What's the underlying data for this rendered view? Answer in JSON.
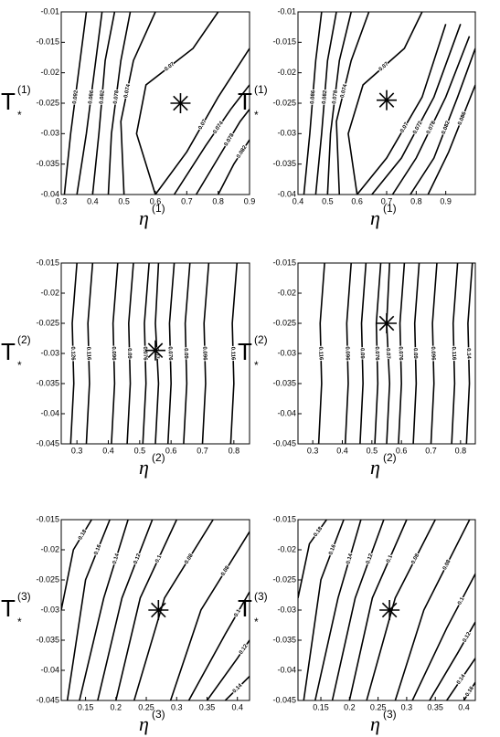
{
  "chart_data": [
    {
      "type": "contour",
      "xlim": [
        0.3,
        0.9
      ],
      "ylim": [
        -0.04,
        -0.01
      ],
      "xticks": [
        0.3,
        0.4,
        0.5,
        0.6,
        0.7,
        0.8,
        0.9
      ],
      "yticks": [
        -0.01,
        -0.015,
        -0.02,
        -0.025,
        -0.03,
        -0.035,
        -0.04
      ],
      "xlabel": {
        "main": "η",
        "sup": "(1)"
      },
      "ylabel": {
        "main": "T",
        "sub": "*",
        "sup": "(1)"
      },
      "marker": {
        "x": 0.68,
        "y": -0.025
      },
      "contours": [
        {
          "level": 0.092,
          "x": [
            0.31,
            0.33,
            0.36,
            0.38
          ],
          "y": [
            -0.04,
            -0.03,
            -0.018,
            -0.01
          ]
        },
        {
          "level": 0.086,
          "x": [
            0.35,
            0.38,
            0.41,
            0.43
          ],
          "y": [
            -0.04,
            -0.03,
            -0.018,
            -0.01
          ]
        },
        {
          "level": 0.082,
          "x": [
            0.4,
            0.42,
            0.44,
            0.47
          ],
          "y": [
            -0.04,
            -0.03,
            -0.018,
            -0.01
          ]
        },
        {
          "level": 0.078,
          "x": [
            0.45,
            0.46,
            0.49,
            0.52
          ],
          "y": [
            -0.04,
            -0.03,
            -0.018,
            -0.01
          ]
        },
        {
          "level": 0.074,
          "x": [
            0.5,
            0.49,
            0.53,
            0.6
          ],
          "y": [
            -0.04,
            -0.028,
            -0.018,
            -0.01
          ]
        },
        {
          "level": 0.07,
          "x": [
            0.6,
            0.54,
            0.57,
            0.72,
            0.8
          ],
          "y": [
            -0.04,
            -0.03,
            -0.022,
            -0.016,
            -0.01
          ]
        },
        {
          "level": 0.07,
          "x": [
            0.6,
            0.7,
            0.8,
            0.9
          ],
          "y": [
            -0.04,
            -0.033,
            -0.024,
            -0.016
          ]
        },
        {
          "level": 0.074,
          "x": [
            0.66,
            0.76,
            0.84,
            0.9
          ],
          "y": [
            -0.04,
            -0.032,
            -0.026,
            -0.022
          ]
        },
        {
          "level": 0.078,
          "x": [
            0.73,
            0.8,
            0.87,
            0.9
          ],
          "y": [
            -0.04,
            -0.034,
            -0.028,
            -0.026
          ]
        },
        {
          "level": 0.082,
          "x": [
            0.8,
            0.85,
            0.9
          ],
          "y": [
            -0.04,
            -0.035,
            -0.031
          ]
        }
      ]
    },
    {
      "type": "contour",
      "xlim": [
        0.4,
        1.0
      ],
      "ylim": [
        -0.04,
        -0.01
      ],
      "xticks": [
        0.4,
        0.5,
        0.6,
        0.7,
        0.8,
        0.9
      ],
      "yticks": [
        -0.01,
        -0.015,
        -0.02,
        -0.025,
        -0.03,
        -0.035,
        -0.04
      ],
      "xlabel": {
        "main": "η",
        "sup": "(1)"
      },
      "ylabel": {
        "main": "T",
        "sub": "*",
        "sup": "(1)"
      },
      "marker": {
        "x": 0.7,
        "y": -0.0245
      },
      "contours": [
        {
          "level": 0.086,
          "x": [
            0.42,
            0.44,
            0.46,
            0.48
          ],
          "y": [
            -0.04,
            -0.03,
            -0.018,
            -0.01
          ]
        },
        {
          "level": 0.082,
          "x": [
            0.46,
            0.48,
            0.5,
            0.53
          ],
          "y": [
            -0.04,
            -0.03,
            -0.018,
            -0.01
          ]
        },
        {
          "level": 0.078,
          "x": [
            0.5,
            0.51,
            0.54,
            0.58
          ],
          "y": [
            -0.04,
            -0.03,
            -0.018,
            -0.01
          ]
        },
        {
          "level": 0.074,
          "x": [
            0.54,
            0.53,
            0.58,
            0.64
          ],
          "y": [
            -0.04,
            -0.028,
            -0.018,
            -0.01
          ]
        },
        {
          "level": 0.07,
          "x": [
            0.6,
            0.57,
            0.62,
            0.76,
            0.82
          ],
          "y": [
            -0.04,
            -0.03,
            -0.022,
            -0.016,
            -0.01
          ]
        },
        {
          "level": 0.07,
          "x": [
            0.6,
            0.7,
            0.82,
            0.9
          ],
          "y": [
            -0.04,
            -0.034,
            -0.024,
            -0.012
          ]
        },
        {
          "level": 0.072,
          "x": [
            0.65,
            0.75,
            0.86,
            0.95
          ],
          "y": [
            -0.04,
            -0.034,
            -0.024,
            -0.012
          ]
        },
        {
          "level": 0.078,
          "x": [
            0.72,
            0.8,
            0.9,
            0.98
          ],
          "y": [
            -0.04,
            -0.034,
            -0.024,
            -0.014
          ]
        },
        {
          "level": 0.082,
          "x": [
            0.78,
            0.86,
            0.94,
            1.0
          ],
          "y": [
            -0.04,
            -0.034,
            -0.024,
            -0.016
          ]
        },
        {
          "level": 0.086,
          "x": [
            0.84,
            0.91,
            1.0
          ],
          "y": [
            -0.04,
            -0.033,
            -0.022
          ]
        }
      ]
    },
    {
      "type": "contour",
      "xlim": [
        0.25,
        0.85
      ],
      "ylim": [
        -0.045,
        -0.015
      ],
      "xticks": [
        0.3,
        0.4,
        0.5,
        0.6,
        0.7,
        0.8
      ],
      "yticks": [
        -0.015,
        -0.02,
        -0.025,
        -0.03,
        -0.035,
        -0.04,
        -0.045
      ],
      "xlabel": {
        "main": "η",
        "sup": "(2)"
      },
      "ylabel": {
        "main": "T",
        "sub": "*",
        "sup": "(2)"
      },
      "marker": {
        "x": 0.55,
        "y": -0.0295
      },
      "contours": [
        {
          "level": 0.126,
          "x": [
            0.28,
            0.29,
            0.285,
            0.3
          ],
          "y": [
            -0.045,
            -0.035,
            -0.025,
            -0.015
          ]
        },
        {
          "level": 0.116,
          "x": [
            0.33,
            0.34,
            0.335,
            0.35
          ],
          "y": [
            -0.045,
            -0.035,
            -0.025,
            -0.015
          ]
        },
        {
          "level": 0.096,
          "x": [
            0.41,
            0.42,
            0.415,
            0.43
          ],
          "y": [
            -0.045,
            -0.035,
            -0.025,
            -0.015
          ]
        },
        {
          "level": 0.09,
          "x": [
            0.46,
            0.47,
            0.465,
            0.48
          ],
          "y": [
            -0.045,
            -0.035,
            -0.025,
            -0.015
          ]
        },
        {
          "level": 0.076,
          "x": [
            0.51,
            0.52,
            0.515,
            0.53
          ],
          "y": [
            -0.045,
            -0.035,
            -0.025,
            -0.015
          ]
        },
        {
          "level": 0.07,
          "x": [
            0.55,
            0.56,
            0.55,
            0.56
          ],
          "y": [
            -0.045,
            -0.035,
            -0.025,
            -0.015
          ]
        },
        {
          "level": 0.076,
          "x": [
            0.59,
            0.6,
            0.595,
            0.61
          ],
          "y": [
            -0.045,
            -0.035,
            -0.025,
            -0.015
          ]
        },
        {
          "level": 0.09,
          "x": [
            0.64,
            0.65,
            0.645,
            0.66
          ],
          "y": [
            -0.045,
            -0.035,
            -0.025,
            -0.015
          ]
        },
        {
          "level": 0.096,
          "x": [
            0.7,
            0.71,
            0.705,
            0.72
          ],
          "y": [
            -0.045,
            -0.035,
            -0.025,
            -0.015
          ]
        },
        {
          "level": 0.116,
          "x": [
            0.79,
            0.8,
            0.795,
            0.81
          ],
          "y": [
            -0.045,
            -0.035,
            -0.025,
            -0.015
          ]
        }
      ]
    },
    {
      "type": "contour",
      "xlim": [
        0.25,
        0.85
      ],
      "ylim": [
        -0.045,
        -0.015
      ],
      "xticks": [
        0.3,
        0.4,
        0.5,
        0.6,
        0.7,
        0.8
      ],
      "yticks": [
        -0.015,
        -0.02,
        -0.025,
        -0.03,
        -0.035,
        -0.04,
        -0.045
      ],
      "xlabel": {
        "main": "η",
        "sup": "(2)"
      },
      "ylabel": {
        "main": "T",
        "sub": "*",
        "sup": "(2)"
      },
      "marker": {
        "x": 0.55,
        "y": -0.025
      },
      "contours": [
        {
          "level": 0.116,
          "x": [
            0.32,
            0.33,
            0.325,
            0.34
          ],
          "y": [
            -0.045,
            -0.035,
            -0.025,
            -0.015
          ]
        },
        {
          "level": 0.096,
          "x": [
            0.41,
            0.42,
            0.415,
            0.43
          ],
          "y": [
            -0.045,
            -0.035,
            -0.025,
            -0.015
          ]
        },
        {
          "level": 0.09,
          "x": [
            0.46,
            0.47,
            0.465,
            0.48
          ],
          "y": [
            -0.045,
            -0.035,
            -0.025,
            -0.015
          ]
        },
        {
          "level": 0.076,
          "x": [
            0.51,
            0.52,
            0.515,
            0.53
          ],
          "y": [
            -0.045,
            -0.035,
            -0.025,
            -0.015
          ]
        },
        {
          "level": 0.07,
          "x": [
            0.55,
            0.56,
            0.55,
            0.56
          ],
          "y": [
            -0.045,
            -0.035,
            -0.025,
            -0.015
          ]
        },
        {
          "level": 0.076,
          "x": [
            0.59,
            0.6,
            0.595,
            0.61
          ],
          "y": [
            -0.045,
            -0.035,
            -0.025,
            -0.015
          ]
        },
        {
          "level": 0.09,
          "x": [
            0.64,
            0.65,
            0.645,
            0.66
          ],
          "y": [
            -0.045,
            -0.035,
            -0.025,
            -0.015
          ]
        },
        {
          "level": 0.096,
          "x": [
            0.7,
            0.71,
            0.705,
            0.72
          ],
          "y": [
            -0.045,
            -0.035,
            -0.025,
            -0.015
          ]
        },
        {
          "level": 0.116,
          "x": [
            0.77,
            0.78,
            0.775,
            0.79
          ],
          "y": [
            -0.045,
            -0.035,
            -0.025,
            -0.015
          ]
        },
        {
          "level": 0.14,
          "x": [
            0.82,
            0.83,
            0.825,
            0.84
          ],
          "y": [
            -0.045,
            -0.035,
            -0.025,
            -0.015
          ]
        }
      ]
    },
    {
      "type": "contour",
      "xlim": [
        0.11,
        0.42
      ],
      "ylim": [
        -0.045,
        -0.015
      ],
      "xticks": [
        0.15,
        0.2,
        0.25,
        0.3,
        0.35,
        0.4
      ],
      "yticks": [
        -0.015,
        -0.02,
        -0.025,
        -0.03,
        -0.035,
        -0.04,
        -0.045
      ],
      "xlabel": {
        "main": "η",
        "sup": "(3)"
      },
      "ylabel": {
        "main": "T",
        "sub": "*",
        "sup": "(3)"
      },
      "marker": {
        "x": 0.27,
        "y": -0.03
      },
      "contours": [
        {
          "level": 0.18,
          "x": [
            0.11,
            0.13,
            0.16
          ],
          "y": [
            -0.03,
            -0.02,
            -0.015
          ]
        },
        {
          "level": 0.16,
          "x": [
            0.12,
            0.15,
            0.19
          ],
          "y": [
            -0.045,
            -0.025,
            -0.015
          ]
        },
        {
          "level": 0.14,
          "x": [
            0.14,
            0.18,
            0.22
          ],
          "y": [
            -0.045,
            -0.028,
            -0.015
          ]
        },
        {
          "level": 0.12,
          "x": [
            0.17,
            0.21,
            0.26
          ],
          "y": [
            -0.045,
            -0.028,
            -0.015
          ]
        },
        {
          "level": 0.1,
          "x": [
            0.2,
            0.24,
            0.3
          ],
          "y": [
            -0.045,
            -0.028,
            -0.015
          ]
        },
        {
          "level": 0.08,
          "x": [
            0.23,
            0.28,
            0.36
          ],
          "y": [
            -0.045,
            -0.028,
            -0.015
          ]
        },
        {
          "level": 0.08,
          "x": [
            0.29,
            0.34,
            0.42
          ],
          "y": [
            -0.045,
            -0.03,
            -0.017
          ]
        },
        {
          "level": 0.1,
          "x": [
            0.32,
            0.38,
            0.42
          ],
          "y": [
            -0.045,
            -0.034,
            -0.027
          ]
        },
        {
          "level": 0.12,
          "x": [
            0.35,
            0.4,
            0.42
          ],
          "y": [
            -0.045,
            -0.038,
            -0.035
          ]
        },
        {
          "level": 0.14,
          "x": [
            0.38,
            0.42
          ],
          "y": [
            -0.045,
            -0.041
          ]
        }
      ]
    },
    {
      "type": "contour",
      "xlim": [
        0.11,
        0.42
      ],
      "ylim": [
        -0.045,
        -0.015
      ],
      "xticks": [
        0.15,
        0.2,
        0.25,
        0.3,
        0.35,
        0.4
      ],
      "yticks": [
        -0.015,
        -0.02,
        -0.025,
        -0.03,
        -0.035,
        -0.04,
        -0.045
      ],
      "xlabel": {
        "main": "η",
        "sup": "(3)"
      },
      "ylabel": {
        "main": "T",
        "sub": "*",
        "sup": "(3)"
      },
      "marker": {
        "x": 0.27,
        "y": -0.03
      },
      "contours": [
        {
          "level": 0.18,
          "x": [
            0.11,
            0.13,
            0.16
          ],
          "y": [
            -0.028,
            -0.019,
            -0.015
          ]
        },
        {
          "level": 0.16,
          "x": [
            0.12,
            0.15,
            0.19
          ],
          "y": [
            -0.045,
            -0.025,
            -0.015
          ]
        },
        {
          "level": 0.14,
          "x": [
            0.14,
            0.18,
            0.22
          ],
          "y": [
            -0.045,
            -0.028,
            -0.015
          ]
        },
        {
          "level": 0.12,
          "x": [
            0.17,
            0.21,
            0.26
          ],
          "y": [
            -0.045,
            -0.028,
            -0.015
          ]
        },
        {
          "level": 0.1,
          "x": [
            0.2,
            0.24,
            0.3
          ],
          "y": [
            -0.045,
            -0.028,
            -0.015
          ]
        },
        {
          "level": 0.08,
          "x": [
            0.23,
            0.28,
            0.35
          ],
          "y": [
            -0.045,
            -0.028,
            -0.015
          ]
        },
        {
          "level": 0.08,
          "x": [
            0.28,
            0.33,
            0.41
          ],
          "y": [
            -0.045,
            -0.03,
            -0.015
          ]
        },
        {
          "level": 0.1,
          "x": [
            0.31,
            0.37,
            0.42
          ],
          "y": [
            -0.045,
            -0.033,
            -0.024
          ]
        },
        {
          "level": 0.12,
          "x": [
            0.34,
            0.39,
            0.42
          ],
          "y": [
            -0.045,
            -0.037,
            -0.032
          ]
        },
        {
          "level": 0.14,
          "x": [
            0.37,
            0.42
          ],
          "y": [
            -0.045,
            -0.038
          ]
        },
        {
          "level": 0.16,
          "x": [
            0.4,
            0.42
          ],
          "y": [
            -0.045,
            -0.042
          ]
        }
      ]
    }
  ]
}
